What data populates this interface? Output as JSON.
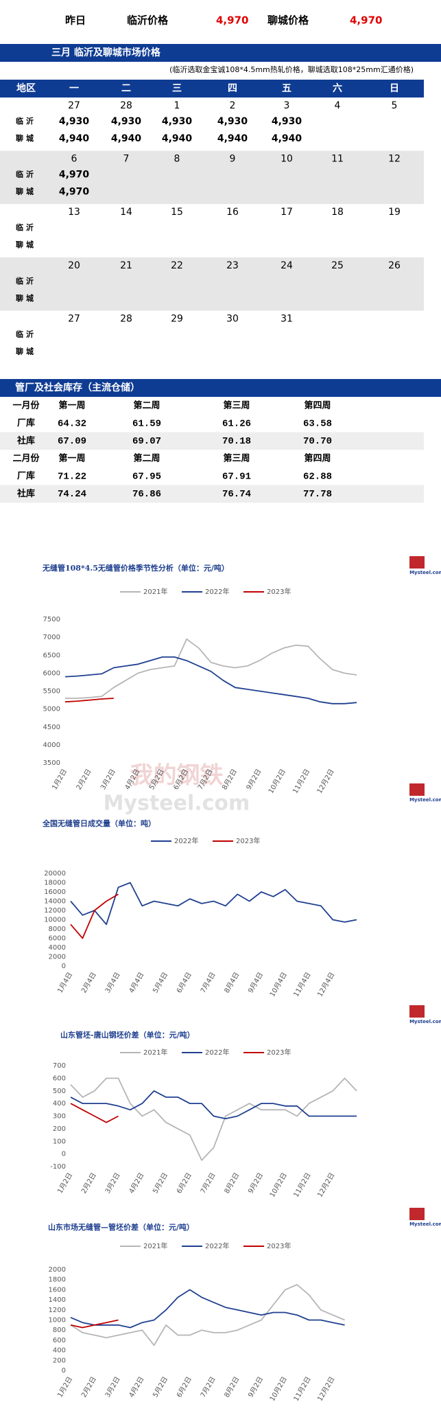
{
  "header": {
    "yesterday": "昨日",
    "linyi_label": "临沂价格",
    "linyi_price": "4,970",
    "liaocheng_label": "聊城价格",
    "liaocheng_price": "4,970"
  },
  "calendar": {
    "title": "三月  临沂及聊城市场价格",
    "note": "(临沂选取金宝诚108*4.5mm热轧价格，聊城选取108*25mm汇通价格)",
    "head": [
      "地区",
      "一",
      "二",
      "三",
      "四",
      "五",
      "六",
      "日"
    ],
    "row_labels": [
      "临沂",
      "聊城"
    ],
    "weeks": [
      {
        "days": [
          27,
          28,
          1,
          2,
          3,
          4,
          5
        ],
        "linyi": [
          "4,930",
          "4,930",
          "4,930",
          "4,930",
          "4,930"
        ],
        "liaocheng": [
          "4,940",
          "4,940",
          "4,940",
          "4,940",
          "4,940"
        ]
      },
      {
        "days": [
          6,
          7,
          8,
          9,
          10,
          11,
          12
        ],
        "linyi": [
          "4,970"
        ],
        "liaocheng": [
          "4,970"
        ]
      },
      {
        "days": [
          13,
          14,
          15,
          16,
          17,
          18,
          19
        ]
      },
      {
        "days": [
          20,
          21,
          22,
          23,
          24,
          25,
          26
        ]
      },
      {
        "days": [
          27,
          28,
          29,
          30,
          31
        ]
      }
    ]
  },
  "inventory": {
    "title": "管厂及社会库存（主流仓储）",
    "rows": [
      {
        "label": "一月份",
        "cells": [
          "第一周",
          "第二周",
          "第三周",
          "第四周"
        ]
      },
      {
        "label": "厂库",
        "cells": [
          "64.32",
          "61.59",
          "61.26",
          "63.58"
        ],
        "colors": [
          "#1aa31a",
          "#1aa31a",
          "#1aa31a",
          "#e00000"
        ]
      },
      {
        "label": "社库",
        "cells": [
          "67.09",
          "69.07",
          "70.18",
          "70.70"
        ],
        "colors": [
          "#e00000",
          "#1aa31a",
          "#e00000",
          "#e00000"
        ]
      },
      {
        "label": "二月份",
        "cells": [
          "第一周",
          "第二周",
          "第三周",
          "第四周"
        ]
      },
      {
        "label": "厂库",
        "cells": [
          "71.22",
          "67.95",
          "67.91",
          "62.88"
        ],
        "colors": [
          "#e00000",
          "#1aa31a",
          "#1aa31a",
          "#1aa31a"
        ]
      },
      {
        "label": "社库",
        "cells": [
          "74.24",
          "76.86",
          "76.74",
          "77.78"
        ],
        "colors": [
          "#e00000",
          "#e00000",
          "#1aa31a",
          "#e00000"
        ]
      }
    ]
  },
  "chart_data": [
    {
      "type": "line",
      "title": "无缝管108*4.5无缝管价格季节性分析（单位：元/吨）",
      "logo": "Mysteel.com",
      "watermark": [
        "我的钢铁",
        "Mysteel.com"
      ],
      "categories": [
        "1月2日",
        null,
        "2月2日",
        null,
        "3月2日",
        null,
        "4月2日",
        null,
        "5月2日",
        null,
        "6月2日",
        null,
        "7月2日",
        null,
        "8月2日",
        null,
        "9月2日",
        null,
        "10月2日",
        null,
        "11月2日",
        null,
        "12月2日",
        null,
        null
      ],
      "ylim": [
        3500,
        7500
      ],
      "yticks": [
        3500,
        4000,
        4500,
        5000,
        5500,
        6000,
        6500,
        7000,
        7500
      ],
      "grid": false,
      "series": [
        {
          "name": "2021年",
          "color": "#b5b5b5",
          "values": [
            5300,
            5300,
            5320,
            5350,
            5600,
            5800,
            6000,
            6100,
            6150,
            6200,
            6950,
            6700,
            6300,
            6200,
            6150,
            6200,
            6350,
            6550,
            6700,
            6780,
            6750,
            6400,
            6100,
            6000,
            5950
          ]
        },
        {
          "name": "2022年",
          "color": "#1f3f8f",
          "values": [
            5900,
            5920,
            5950,
            5980,
            6150,
            6200,
            6250,
            6350,
            6450,
            6450,
            6350,
            6200,
            6050,
            5800,
            5600,
            5550,
            5500,
            5450,
            5400,
            5350,
            5300,
            5200,
            5150,
            5150,
            5180
          ]
        },
        {
          "name": "2023年",
          "color": "#c00000",
          "values": [
            5200,
            5220,
            5250,
            5280,
            5300,
            null,
            null,
            null,
            null,
            null,
            null,
            null,
            null,
            null,
            null,
            null,
            null,
            null,
            null,
            null,
            null,
            null,
            null,
            null,
            null
          ]
        }
      ]
    },
    {
      "type": "line",
      "title": "全国无缝管日成交量（单位：吨）",
      "logo": "Mysteel.com",
      "categories": [
        "1月4日",
        null,
        "2月4日",
        null,
        "3月4日",
        null,
        "4月4日",
        null,
        "5月4日",
        null,
        "6月4日",
        null,
        "7月4日",
        null,
        "8月4日",
        null,
        "9月4日",
        null,
        "10月4日",
        null,
        "11月4日",
        null,
        "12月4日",
        null,
        null
      ],
      "ylim": [
        0,
        20000
      ],
      "yticks": [
        0,
        2000,
        4000,
        6000,
        8000,
        10000,
        12000,
        14000,
        16000,
        18000,
        20000
      ],
      "grid": false,
      "series": [
        {
          "name": "2022年",
          "color": "#1f3f8f",
          "values": [
            14000,
            11000,
            12000,
            9000,
            17000,
            18000,
            13000,
            14000,
            13500,
            13000,
            14500,
            13500,
            14000,
            13000,
            15500,
            14000,
            16000,
            15000,
            16500,
            14000,
            13500,
            13000,
            10000,
            9500,
            10000
          ]
        },
        {
          "name": "2023年",
          "color": "#c00000",
          "values": [
            9000,
            6000,
            12000,
            14000,
            15500,
            null,
            null,
            null,
            null,
            null,
            null,
            null,
            null,
            null,
            null,
            null,
            null,
            null,
            null,
            null,
            null,
            null,
            null,
            null,
            null
          ]
        }
      ]
    },
    {
      "type": "line",
      "title": "山东管坯-唐山钢坯价差（单位：元/吨）",
      "logo": "Mysteel.com",
      "categories": [
        "1月2日",
        null,
        "2月2日",
        null,
        "3月2日",
        null,
        "4月2日",
        null,
        "5月2日",
        null,
        "6月2日",
        null,
        "7月2日",
        null,
        "8月2日",
        null,
        "9月2日",
        null,
        "10月2日",
        null,
        "11月2日",
        null,
        "12月2日",
        null,
        null
      ],
      "ylim": [
        -100,
        700
      ],
      "yticks": [
        -100,
        0,
        100,
        200,
        300,
        400,
        500,
        600,
        700
      ],
      "grid": false,
      "series": [
        {
          "name": "2021年",
          "color": "#b5b5b5",
          "values": [
            550,
            450,
            500,
            600,
            600,
            400,
            300,
            350,
            250,
            200,
            150,
            -50,
            50,
            300,
            350,
            400,
            350,
            350,
            350,
            300,
            400,
            450,
            500,
            600,
            500
          ]
        },
        {
          "name": "2022年",
          "color": "#1f3f8f",
          "values": [
            450,
            400,
            400,
            400,
            380,
            350,
            400,
            500,
            450,
            450,
            400,
            400,
            300,
            280,
            300,
            350,
            400,
            400,
            380,
            380,
            300,
            300,
            300,
            300,
            300
          ]
        },
        {
          "name": "2023年",
          "color": "#c00000",
          "values": [
            400,
            350,
            300,
            250,
            300,
            null,
            null,
            null,
            null,
            null,
            null,
            null,
            null,
            null,
            null,
            null,
            null,
            null,
            null,
            null,
            null,
            null,
            null,
            null,
            null
          ]
        }
      ]
    },
    {
      "type": "line",
      "title": "山东市场无缝管—管坯价差（单位：元/吨）",
      "logo": "Mysteel.com",
      "categories": [
        "1月2日",
        null,
        "2月2日",
        null,
        "3月2日",
        null,
        "4月2日",
        null,
        "5月2日",
        null,
        "6月2日",
        null,
        "7月2日",
        null,
        "8月2日",
        null,
        "9月2日",
        null,
        "10月2日",
        null,
        "11月2日",
        null,
        "12月2日",
        null,
        null
      ],
      "ylim": [
        0,
        2000
      ],
      "yticks": [
        0,
        200,
        400,
        600,
        800,
        1000,
        1200,
        1400,
        1600,
        1800,
        2000
      ],
      "grid": false,
      "series": [
        {
          "name": "2021年",
          "color": "#b5b5b5",
          "values": [
            900,
            750,
            700,
            650,
            700,
            750,
            800,
            500,
            900,
            700,
            700,
            800,
            750,
            750,
            800,
            900,
            1000,
            1300,
            1600,
            1700,
            1500,
            1200,
            1100,
            1000,
            null
          ]
        },
        {
          "name": "2022年",
          "color": "#1f3f8f",
          "values": [
            1050,
            950,
            900,
            900,
            900,
            850,
            950,
            1000,
            1200,
            1450,
            1600,
            1450,
            1350,
            1250,
            1200,
            1150,
            1100,
            1150,
            1150,
            1100,
            1000,
            1000,
            950,
            900,
            null
          ]
        },
        {
          "name": "2023年",
          "color": "#c00000",
          "values": [
            900,
            850,
            900,
            950,
            1000,
            null,
            null,
            null,
            null,
            null,
            null,
            null,
            null,
            null,
            null,
            null,
            null,
            null,
            null,
            null,
            null,
            null,
            null,
            null,
            null
          ]
        }
      ]
    }
  ]
}
